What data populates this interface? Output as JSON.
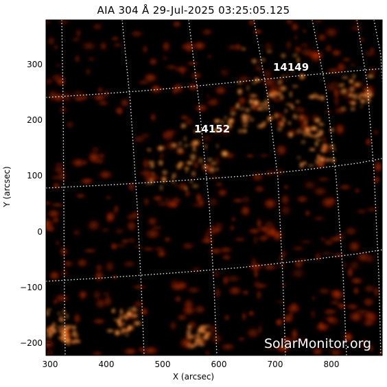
{
  "title": "AIA 304 Å 29-Jul-2025 03:25:05.125",
  "x_axis": {
    "label": "X (arcsec)",
    "ticks": [
      "300",
      "400",
      "500",
      "600",
      "700",
      "800"
    ]
  },
  "y_axis": {
    "label": "Y (arcsec)",
    "ticks": [
      "300",
      "200",
      "100",
      "0",
      "−100",
      "−200"
    ]
  },
  "active_regions": [
    "14149",
    "14152"
  ],
  "watermark": "SolarMonitor.org",
  "colors": {
    "background": "#000000",
    "emission_dim": "#5a0800",
    "emission_mid": "#d83a00",
    "emission_bright": "#ffe6a8",
    "grid": "#ffffff"
  }
}
